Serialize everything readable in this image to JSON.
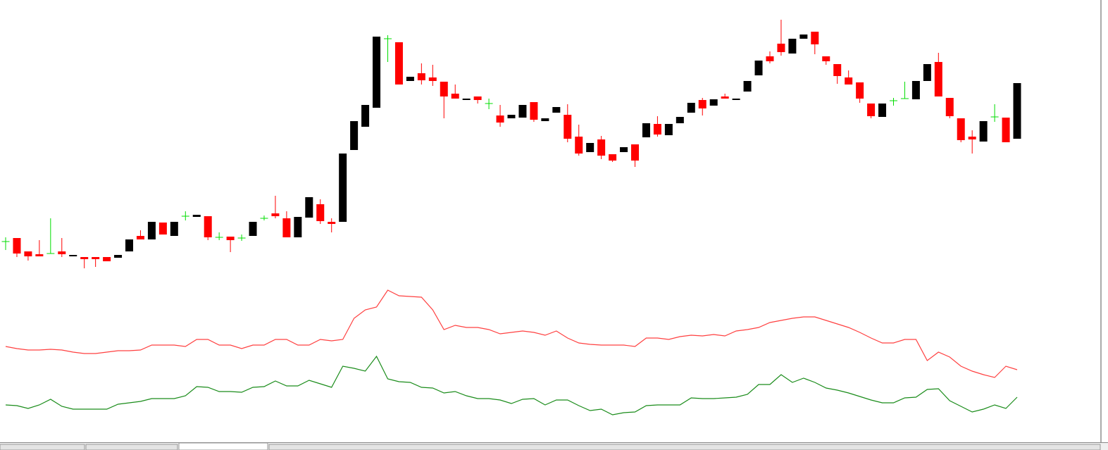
{
  "chart_data": {
    "type": "candlestick",
    "up_color": "#000000",
    "down_color": "#ff0000",
    "doji_color": "#00dd00",
    "ylim": [
      0,
      639
    ],
    "open": [
      296,
      301,
      282,
      278,
      279,
      282,
      276,
      274,
      274,
      274,
      273,
      282,
      304,
      299,
      323,
      304,
      332,
      331,
      332,
      302,
      303,
      301,
      304,
      329,
      336,
      329,
      302,
      330,
      349,
      324,
      324,
      426,
      459,
      486,
      584,
      579,
      524,
      535,
      529,
      523,
      506,
      498,
      502,
      492,
      475,
      471,
      472,
      494,
      467,
      479,
      476,
      445,
      423,
      441,
      420,
      423,
      434,
      444,
      463,
      447,
      464,
      479,
      497,
      489,
      502,
      498,
      509,
      532,
      559,
      577,
      563,
      584,
      594,
      559,
      548,
      529,
      522,
      492,
      473,
      496,
      499,
      498,
      524,
      551,
      500,
      471,
      445,
      438,
      473,
      472,
      442
    ],
    "high": [
      302,
      301,
      282,
      298,
      329,
      301,
      277,
      274,
      274,
      274,
      277,
      299,
      312,
      324,
      323,
      324,
      339,
      334,
      332,
      309,
      303,
      306,
      324,
      333,
      361,
      339,
      331,
      359,
      356,
      329,
      421,
      467,
      490,
      587,
      589,
      579,
      530,
      549,
      547,
      523,
      519,
      499,
      502,
      499,
      490,
      476,
      490,
      494,
      471,
      487,
      491,
      462,
      436,
      446,
      420,
      430,
      434,
      464,
      474,
      463,
      473,
      493,
      500,
      498,
      506,
      499,
      524,
      553,
      566,
      611,
      584,
      590,
      594,
      559,
      548,
      539,
      522,
      492,
      492,
      500,
      523,
      524,
      548,
      564,
      500,
      471,
      454,
      467,
      491,
      472,
      521
    ],
    "low": [
      284,
      274,
      269,
      275,
      279,
      274,
      276,
      258,
      260,
      268,
      273,
      282,
      299,
      299,
      306,
      304,
      326,
      331,
      298,
      298,
      281,
      297,
      304,
      326,
      329,
      302,
      302,
      330,
      321,
      309,
      324,
      426,
      459,
      486,
      551,
      519,
      524,
      519,
      517,
      471,
      499,
      498,
      492,
      484,
      459,
      471,
      472,
      466,
      467,
      479,
      437,
      418,
      423,
      413,
      409,
      423,
      402,
      444,
      445,
      447,
      464,
      479,
      475,
      489,
      499,
      498,
      509,
      532,
      549,
      560,
      563,
      584,
      562,
      547,
      520,
      519,
      493,
      471,
      473,
      489,
      499,
      498,
      524,
      502,
      471,
      437,
      421,
      438,
      466,
      437,
      442
    ],
    "close": [
      296,
      279,
      275,
      275,
      279,
      278,
      277,
      271,
      271,
      268,
      277,
      299,
      299,
      324,
      306,
      324,
      332,
      334,
      302,
      302,
      298,
      301,
      324,
      329,
      332,
      302,
      331,
      359,
      325,
      321,
      421,
      467,
      490,
      587,
      584,
      519,
      530,
      525,
      524,
      502,
      499,
      499,
      497,
      492,
      465,
      476,
      490,
      469,
      471,
      487,
      442,
      421,
      436,
      418,
      411,
      430,
      411,
      464,
      448,
      463,
      473,
      493,
      485,
      498,
      499,
      499,
      524,
      553,
      552,
      565,
      584,
      590,
      576,
      552,
      531,
      519,
      499,
      474,
      492,
      496,
      499,
      524,
      548,
      502,
      474,
      440,
      441,
      467,
      473,
      437,
      521
    ],
    "lines": [
      {
        "color": "#ff4040",
        "values": [
          147,
          144,
          142,
          142,
          143,
          142,
          139,
          137,
          137,
          139,
          141,
          141,
          142,
          149,
          149,
          149,
          147,
          157,
          157,
          149,
          149,
          144,
          149,
          149,
          157,
          157,
          149,
          149,
          157,
          155,
          157,
          187,
          199,
          203,
          227,
          219,
          218,
          217,
          199,
          171,
          177,
          174,
          174,
          171,
          165,
          167,
          169,
          167,
          163,
          169,
          159,
          152,
          150,
          149,
          149,
          149,
          147,
          159,
          159,
          157,
          161,
          163,
          162,
          164,
          162,
          169,
          171,
          174,
          181,
          184,
          187,
          189,
          189,
          184,
          179,
          174,
          167,
          159,
          152,
          152,
          157,
          157,
          127,
          139,
          132,
          119,
          112,
          107,
          103,
          119,
          114
        ]
      },
      {
        "color": "#1a8c1a",
        "values": [
          64,
          63,
          59,
          64,
          72,
          62,
          58,
          58,
          58,
          58,
          65,
          67,
          69,
          73,
          73,
          73,
          77,
          90,
          89,
          83,
          83,
          82,
          89,
          90,
          98,
          91,
          91,
          99,
          94,
          89,
          119,
          116,
          112,
          133,
          101,
          97,
          96,
          89,
          88,
          81,
          83,
          77,
          73,
          73,
          71,
          66,
          72,
          73,
          64,
          71,
          71,
          63,
          56,
          58,
          50,
          53,
          54,
          63,
          64,
          64,
          64,
          74,
          73,
          73,
          74,
          75,
          79,
          93,
          93,
          107,
          96,
          102,
          96,
          88,
          85,
          81,
          76,
          71,
          67,
          67,
          74,
          75,
          86,
          87,
          70,
          62,
          54,
          58,
          64,
          59,
          75
        ]
      }
    ]
  }
}
